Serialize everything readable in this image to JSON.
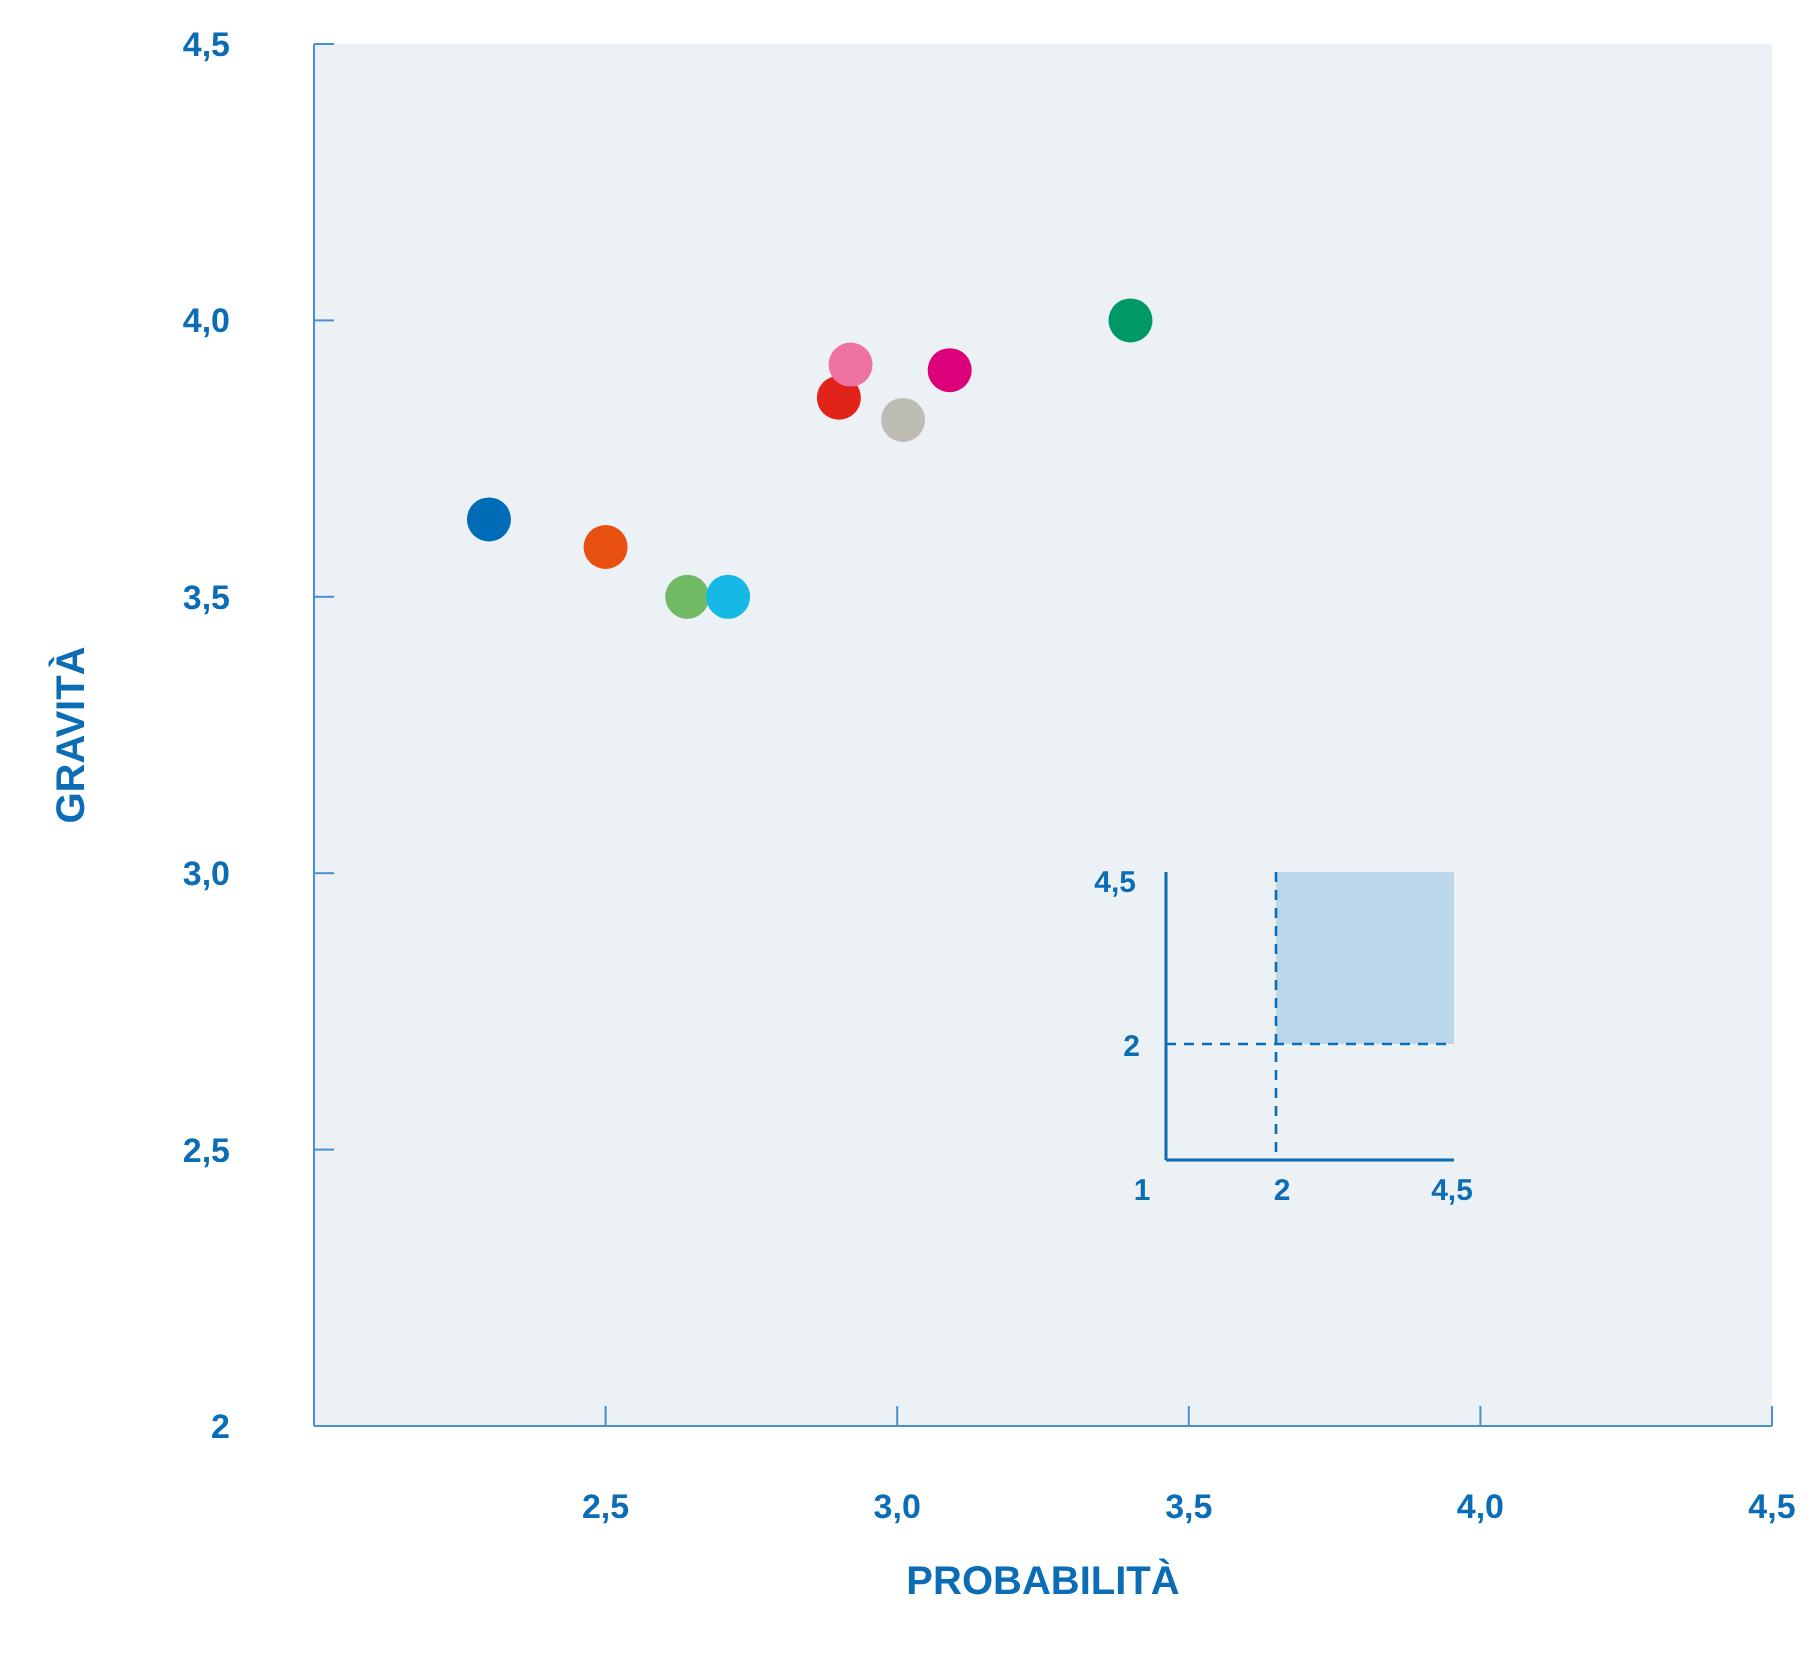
{
  "chart_data": {
    "type": "scatter",
    "xlabel": "PROBABILITÀ",
    "ylabel": "GRAVITÀ",
    "x": [
      2.3,
      2.5,
      2.64,
      2.71,
      2.9,
      2.92,
      3.01,
      3.09,
      3.4
    ],
    "values": [
      3.64,
      3.59,
      3.5,
      3.5,
      3.86,
      3.92,
      3.82,
      3.91,
      4.0
    ],
    "colors": [
      "#006bb6",
      "#e8500f",
      "#72b966",
      "#16b8e6",
      "#e2231a",
      "#ee72a2",
      "#bdbdb6",
      "#dd007b",
      "#009866"
    ],
    "marker": "circle",
    "grid": false,
    "legend": false,
    "xlim": [
      2,
      4.5
    ],
    "xticks": [
      {
        "value": 2,
        "label": null
      },
      {
        "value": 2.5,
        "label": "2,5"
      },
      {
        "value": 3,
        "label": "3,0"
      },
      {
        "value": 3.5,
        "label": "3,5"
      },
      {
        "value": 4,
        "label": "4,0"
      },
      {
        "value": 4.5,
        "label": "4,5"
      }
    ],
    "ylim": [
      2,
      4.5
    ],
    "yticks": [
      2,
      {
        "value": 2.5,
        "label": "2,5"
      },
      {
        "value": 3,
        "label": "3,0"
      },
      {
        "value": 3.5,
        "label": "3,5"
      },
      {
        "value": 4,
        "label": "4,0"
      },
      {
        "value": 4.5,
        "label": "4,5"
      }
    ],
    "annotations": [
      "4,5",
      "2",
      "1",
      "2",
      "4,5"
    ]
  }
}
